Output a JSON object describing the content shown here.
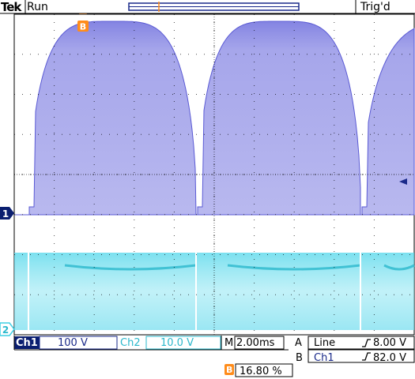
{
  "header": {
    "brand": "Tek",
    "acq_state": "Run",
    "trigger_status": "Trig'd"
  },
  "markers": {
    "cursor_b": "B",
    "ch1": "1",
    "ch2": "2"
  },
  "settings": {
    "ch1_label": "Ch1",
    "ch1_scale": "100 V",
    "ch2_label": "Ch2",
    "ch2_scale": "10.0 V",
    "timebase_label": "M",
    "timebase": "2.00ms",
    "trig_a_label": "A",
    "trig_a_source": "Line",
    "trig_a_level": "8.00 V",
    "trig_b_label": "B",
    "trig_b_source": "Ch1",
    "trig_b_level": "82.0 V"
  },
  "readout": {
    "cursor_label": "B",
    "value": "16.80 %"
  },
  "colors": {
    "ch1": "#6c6cdc",
    "ch2": "#3fcfe4",
    "cursor": "#ff8c1a",
    "badge": "#0a1e70"
  }
}
